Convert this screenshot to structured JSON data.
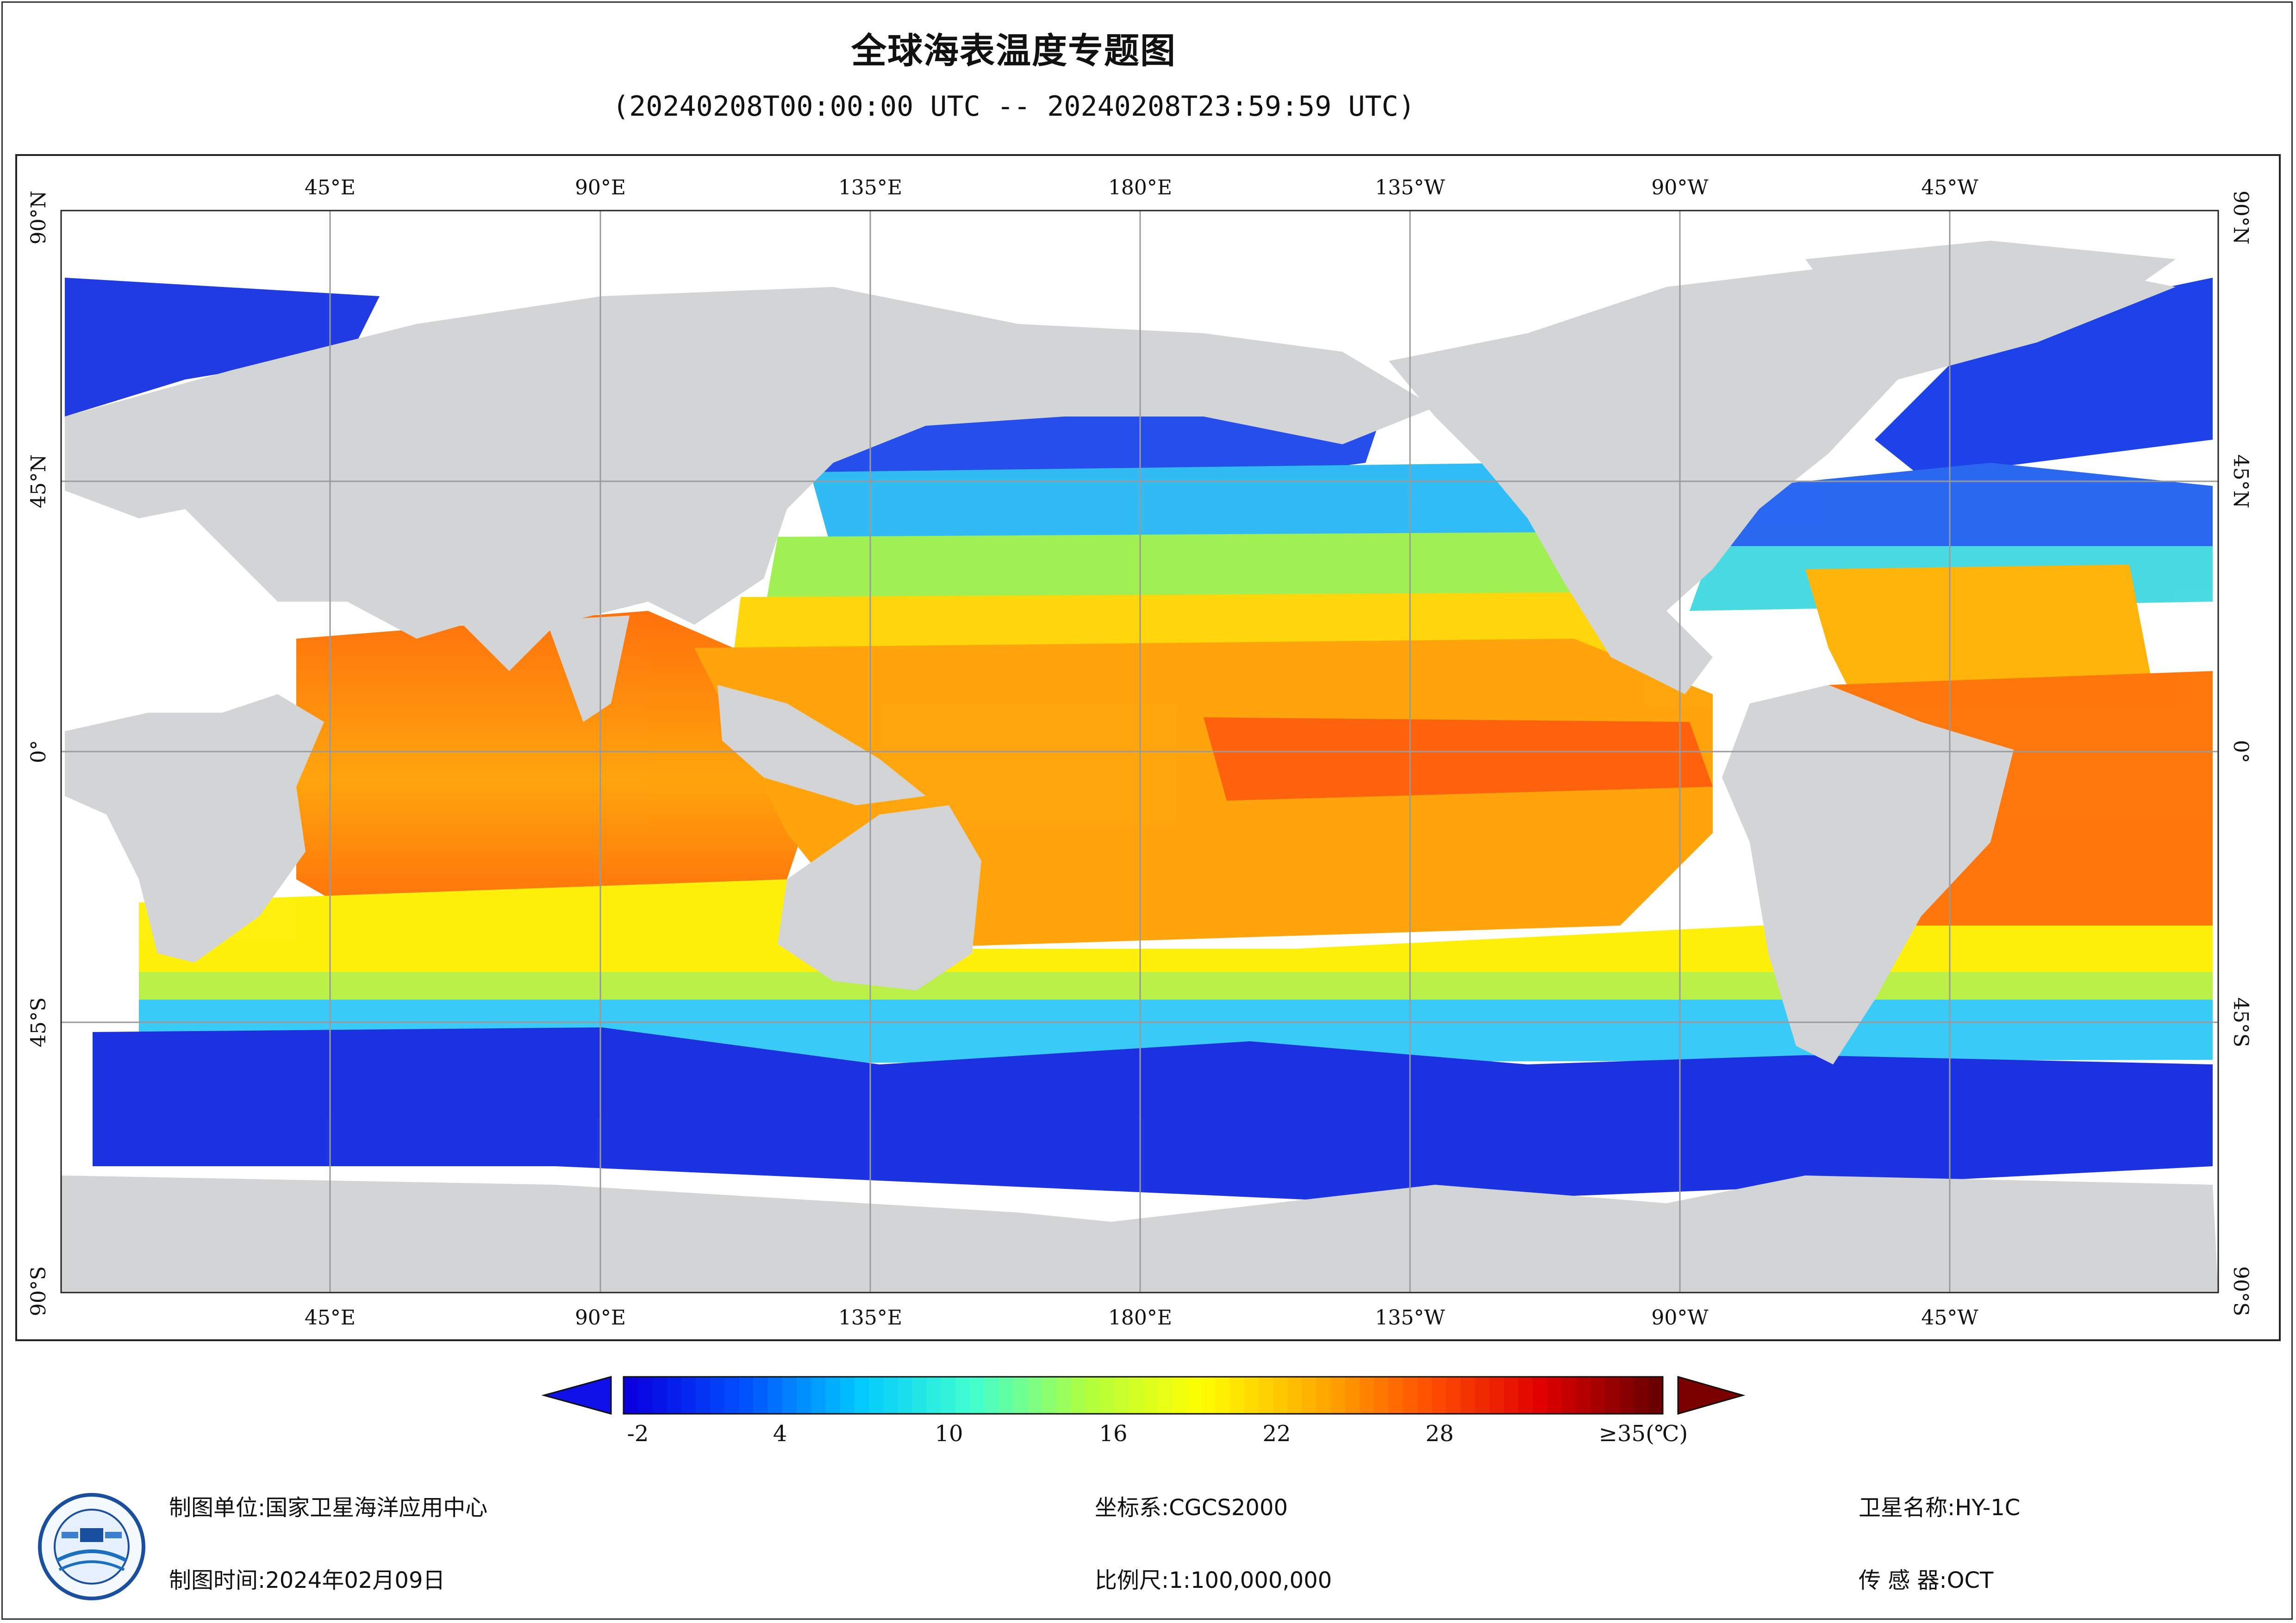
{
  "title": "全球海表温度专题图",
  "subtitle": "(20240208T00:00:00 UTC -- 20240208T23:59:59 UTC)",
  "map": {
    "lon_labels": [
      "45°E",
      "90°E",
      "135°E",
      "180°E",
      "135°W",
      "90°W",
      "45°W"
    ],
    "lat_labels": [
      "90°N",
      "45°N",
      "0°",
      "45°S",
      "90°S"
    ],
    "colors": {
      "land": "#d3d4d6",
      "nodata": "#ffffff",
      "grid": "#9a9a9a"
    }
  },
  "colorbar": {
    "labels": [
      "-2",
      "4",
      "10",
      "16",
      "22",
      "28",
      "≥35(℃)"
    ],
    "stops": [
      "#0a00e0",
      "#0050ff",
      "#00c8ff",
      "#40ffd0",
      "#b0ff40",
      "#ffff00",
      "#ffb000",
      "#ff5000",
      "#e00000",
      "#6a0000"
    ],
    "under_color": "#1010e8",
    "over_color": "#7a0000"
  },
  "footer": {
    "org_label": "制图单位:",
    "org_value": "国家卫星海洋应用中心",
    "date_label": "制图时间:",
    "date_value": "2024年02月09日",
    "crs_label": "坐标系:",
    "crs_value": "CGCS2000",
    "scale_label": "比例尺:",
    "scale_value": "1:100,000,000",
    "satellite_label": "卫星名称:",
    "satellite_value": "HY-1C",
    "sensor_label": "传 感 器:",
    "sensor_value": "OCT"
  },
  "logo": {
    "icon": "nsoas-logo-icon"
  }
}
